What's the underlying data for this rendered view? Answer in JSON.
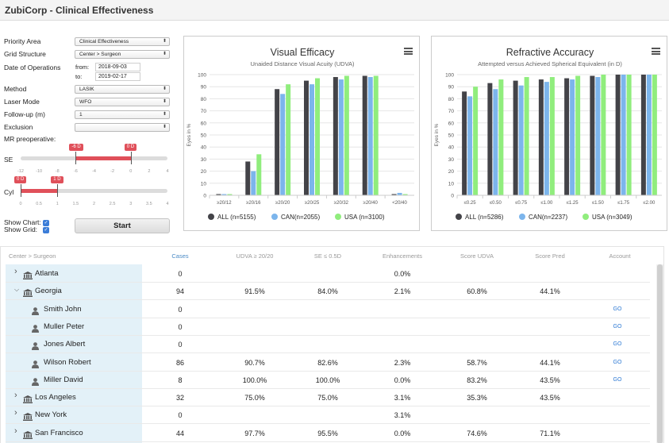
{
  "app": {
    "title": "ZubiCorp - Clinical Effectiveness"
  },
  "form": {
    "priority_area": {
      "label": "Priority Area",
      "value": "Clinical Effectiveness"
    },
    "grid_structure": {
      "label": "Grid Structure",
      "value": "Center > Surgeon"
    },
    "date_of_operations": {
      "label": "Date of Operations",
      "from_label": "from:",
      "from_value": "2018-09-03",
      "to_label": "to:",
      "to_value": "2019-02-17"
    },
    "method": {
      "label": "Method",
      "value": "LASIK"
    },
    "laser_mode": {
      "label": "Laser Mode",
      "value": "WFO"
    },
    "follow_up": {
      "label": "Follow-up (m)",
      "value": "1"
    },
    "exclusion": {
      "label": "Exclusion",
      "value": ""
    },
    "mr_preoperative_label": "MR preoperative:",
    "se_slider": {
      "label": "SE",
      "low_badge": "-6 D",
      "high_badge": "0 D",
      "low": -6,
      "high": 0,
      "min": -12,
      "max": 4,
      "ticks": [
        "-12",
        "-10",
        "-8",
        "-6",
        "-4",
        "-2",
        "0",
        "2",
        "4"
      ]
    },
    "cyl_slider": {
      "label": "Cyl",
      "low_badge": "0 D",
      "high_badge": "1 D",
      "low": 0,
      "high": 1,
      "min": 0,
      "max": 4,
      "ticks": [
        "0",
        "0.5",
        "1",
        "1.5",
        "2",
        "2.5",
        "3",
        "3.5",
        "4"
      ]
    },
    "show_chart": {
      "label": "Show Chart:",
      "checked": true
    },
    "show_grid": {
      "label": "Show Grid:",
      "checked": true
    },
    "start_button": "Start"
  },
  "chart_data": [
    {
      "type": "bar",
      "title": "Visual Efficacy",
      "subtitle": "Unaided Distance Visual Acuity (UDVA)",
      "ylabel": "Eyes in %",
      "xlabel": "",
      "ylim": [
        0,
        100
      ],
      "yticks": [
        0,
        10,
        20,
        30,
        40,
        50,
        60,
        70,
        80,
        90,
        100
      ],
      "categories": [
        "≥20/12",
        "≥20/16",
        "≥20/20",
        "≥20/25",
        "≥20/32",
        "≥20/40",
        "<20/40"
      ],
      "series": [
        {
          "name": "ALL (n=5155)",
          "color": "#434348",
          "values": [
            1,
            28,
            88,
            95,
            98,
            99,
            1
          ]
        },
        {
          "name": "CAN(n=2055)",
          "color": "#7cb5ec",
          "values": [
            1,
            20,
            84,
            92,
            96,
            98,
            2
          ]
        },
        {
          "name": "USA (n=3100)",
          "color": "#90ed7d",
          "values": [
            1,
            34,
            92,
            97,
            99,
            99,
            1
          ]
        }
      ],
      "grid": true,
      "legend_position": "bottom"
    },
    {
      "type": "bar",
      "title": "Refractive Accuracy",
      "subtitle": "Attempted versus Achieved Spherical Equivalent (in D)",
      "ylabel": "Eyes in %",
      "xlabel": "",
      "ylim": [
        0,
        100
      ],
      "yticks": [
        0,
        10,
        20,
        30,
        40,
        50,
        60,
        70,
        80,
        90,
        100
      ],
      "categories": [
        "≤0.25",
        "≤0.50",
        "≤0.75",
        "≤1.00",
        "≤1.25",
        "≤1.50",
        "≤1.75",
        "≤2.00"
      ],
      "series": [
        {
          "name": "ALL (n=5286)",
          "color": "#434348",
          "values": [
            86,
            93,
            95,
            96,
            97,
            99,
            100,
            100
          ]
        },
        {
          "name": "CAN(n=2237)",
          "color": "#7cb5ec",
          "values": [
            82,
            88,
            91,
            94,
            96,
            98,
            100,
            100
          ]
        },
        {
          "name": "USA (n=3049)",
          "color": "#90ed7d",
          "values": [
            90,
            96,
            98,
            98,
            99,
            100,
            100,
            100
          ]
        }
      ],
      "grid": true,
      "legend_position": "bottom"
    }
  ],
  "grid": {
    "headers": [
      "Center > Surgeon",
      "Cases",
      "UDVA ≥ 20/20",
      "SE ≤ 0.5D",
      "Enhancements",
      "Score UDVA",
      "Score Pred",
      "Account"
    ],
    "rows": [
      {
        "type": "center",
        "expanded": false,
        "name": "Atlanta",
        "cases": "0",
        "udva": "",
        "se": "",
        "enh": "0.0%",
        "score_udva": "",
        "score_pred": "",
        "account": ""
      },
      {
        "type": "center",
        "expanded": true,
        "name": "Georgia",
        "cases": "94",
        "udva": "91.5%",
        "se": "84.0%",
        "enh": "2.1%",
        "score_udva": "60.8%",
        "score_pred": "44.1%",
        "account": ""
      },
      {
        "type": "surgeon",
        "name": "Smith John",
        "cases": "0",
        "udva": "",
        "se": "",
        "enh": "",
        "score_udva": "",
        "score_pred": "",
        "account": "GO"
      },
      {
        "type": "surgeon",
        "name": "Muller Peter",
        "cases": "0",
        "udva": "",
        "se": "",
        "enh": "",
        "score_udva": "",
        "score_pred": "",
        "account": "GO"
      },
      {
        "type": "surgeon",
        "name": "Jones Albert",
        "cases": "0",
        "udva": "",
        "se": "",
        "enh": "",
        "score_udva": "",
        "score_pred": "",
        "account": "GO"
      },
      {
        "type": "surgeon",
        "name": "Wilson Robert",
        "cases": "86",
        "udva": "90.7%",
        "se": "82.6%",
        "enh": "2.3%",
        "score_udva": "58.7%",
        "score_pred": "44.1%",
        "account": "GO"
      },
      {
        "type": "surgeon",
        "name": "Miller David",
        "cases": "8",
        "udva": "100.0%",
        "se": "100.0%",
        "enh": "0.0%",
        "score_udva": "83.2%",
        "score_pred": "43.5%",
        "account": "GO"
      },
      {
        "type": "center",
        "expanded": false,
        "name": "Los Angeles",
        "cases": "32",
        "udva": "75.0%",
        "se": "75.0%",
        "enh": "3.1%",
        "score_udva": "35.3%",
        "score_pred": "43.5%",
        "account": ""
      },
      {
        "type": "center",
        "expanded": false,
        "name": "New York",
        "cases": "0",
        "udva": "",
        "se": "",
        "enh": "3.1%",
        "score_udva": "",
        "score_pred": "",
        "account": ""
      },
      {
        "type": "center",
        "expanded": false,
        "name": "San Francisco",
        "cases": "44",
        "udva": "97.7%",
        "se": "95.5%",
        "enh": "0.0%",
        "score_udva": "74.6%",
        "score_pred": "71.1%",
        "account": ""
      }
    ]
  }
}
